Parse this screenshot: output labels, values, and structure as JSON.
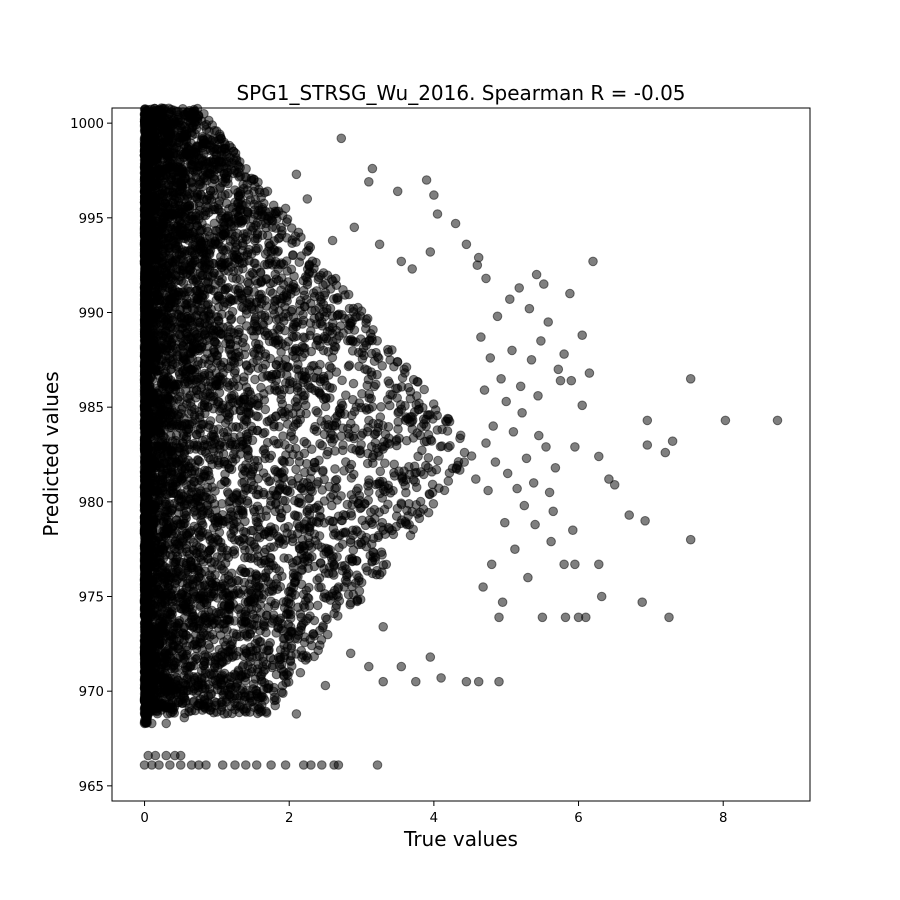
{
  "chart_data": {
    "type": "scatter",
    "title": "SPG1_STRSG_Wu_2016. Spearman R = -0.05",
    "xlabel": "True values",
    "ylabel": "Predicted values",
    "xlim": [
      -0.45,
      9.2
    ],
    "ylim": [
      964.2,
      1000.8
    ],
    "xticks": [
      0,
      2,
      4,
      6,
      8
    ],
    "yticks": [
      965,
      970,
      975,
      980,
      985,
      990,
      995,
      1000
    ],
    "grid": false,
    "legend": "none",
    "marker_color": "#000000",
    "marker_alpha": 0.5,
    "series": [
      {
        "name": "",
        "outlier_points": [
          [
            8.75,
            984.3
          ],
          [
            8.03,
            984.3
          ],
          [
            7.55,
            986.5
          ],
          [
            7.55,
            978.0
          ],
          [
            7.3,
            983.2
          ],
          [
            7.25,
            973.9
          ],
          [
            7.2,
            982.6
          ],
          [
            6.95,
            984.3
          ],
          [
            6.95,
            983.0
          ],
          [
            6.92,
            979.0
          ],
          [
            6.88,
            974.7
          ],
          [
            6.7,
            979.3
          ],
          [
            6.5,
            980.9
          ],
          [
            6.42,
            981.2
          ],
          [
            6.32,
            975.0
          ],
          [
            6.28,
            976.7
          ],
          [
            6.28,
            982.4
          ],
          [
            6.2,
            992.7
          ],
          [
            6.15,
            986.8
          ],
          [
            6.1,
            973.9
          ],
          [
            6.05,
            988.8
          ],
          [
            6.05,
            985.1
          ],
          [
            6.0,
            973.9
          ],
          [
            5.95,
            976.7
          ],
          [
            5.95,
            982.9
          ],
          [
            5.92,
            978.5
          ],
          [
            5.9,
            986.4
          ],
          [
            5.88,
            991.0
          ],
          [
            5.82,
            973.9
          ],
          [
            5.8,
            976.7
          ],
          [
            5.8,
            987.8
          ],
          [
            5.75,
            986.4
          ],
          [
            5.72,
            987.0
          ],
          [
            5.68,
            981.8
          ],
          [
            5.65,
            979.5
          ],
          [
            5.62,
            977.9
          ],
          [
            5.6,
            980.5
          ],
          [
            5.58,
            989.5
          ],
          [
            5.55,
            982.9
          ],
          [
            5.52,
            991.5
          ],
          [
            5.5,
            973.9
          ],
          [
            5.48,
            988.5
          ],
          [
            5.45,
            983.5
          ],
          [
            5.44,
            985.6
          ],
          [
            5.42,
            992.0
          ],
          [
            5.4,
            978.8
          ],
          [
            5.38,
            981.0
          ],
          [
            5.35,
            987.5
          ],
          [
            5.32,
            990.2
          ],
          [
            5.3,
            976.0
          ],
          [
            5.28,
            982.3
          ],
          [
            5.25,
            979.8
          ],
          [
            5.22,
            984.7
          ],
          [
            5.2,
            986.1
          ],
          [
            5.18,
            991.3
          ],
          [
            5.15,
            980.7
          ],
          [
            5.12,
            977.5
          ],
          [
            5.1,
            983.7
          ],
          [
            5.08,
            988.0
          ],
          [
            5.05,
            990.7
          ],
          [
            5.02,
            981.5
          ],
          [
            5.0,
            985.3
          ],
          [
            4.98,
            978.9
          ],
          [
            4.95,
            974.7
          ],
          [
            4.93,
            986.5
          ],
          [
            4.9,
            970.5
          ],
          [
            4.9,
            973.9
          ],
          [
            4.88,
            989.8
          ],
          [
            4.85,
            982.1
          ],
          [
            4.82,
            984.0
          ],
          [
            4.8,
            976.7
          ],
          [
            4.78,
            987.6
          ],
          [
            4.75,
            980.6
          ],
          [
            4.72,
            983.1
          ],
          [
            4.7,
            985.9
          ],
          [
            4.68,
            975.5
          ],
          [
            4.65,
            988.7
          ],
          [
            4.62,
            970.5
          ],
          [
            4.6,
            992.5
          ],
          [
            4.58,
            981.2
          ]
        ],
        "cluster_points": [
          [
            0.0,
            999.0
          ],
          [
            0.0,
            998.5
          ],
          [
            0.05,
            997.8
          ],
          [
            0.12,
            997.0
          ],
          [
            0.2,
            996.8
          ],
          [
            0.35,
            997.9
          ],
          [
            0.45,
            996.3
          ],
          [
            0.6,
            995.6
          ],
          [
            0.78,
            996.2
          ],
          [
            0.9,
            997.3
          ],
          [
            1.2,
            998.7
          ],
          [
            1.3,
            995.8
          ],
          [
            1.5,
            994.9
          ],
          [
            1.7,
            996.4
          ],
          [
            1.95,
            995.5
          ],
          [
            2.1,
            997.3
          ],
          [
            2.25,
            996.0
          ],
          [
            2.72,
            999.2
          ],
          [
            3.1,
            996.9
          ],
          [
            3.15,
            997.6
          ],
          [
            3.5,
            996.4
          ],
          [
            3.9,
            997.0
          ],
          [
            4.0,
            996.2
          ],
          [
            4.05,
            995.2
          ],
          [
            4.3,
            994.7
          ],
          [
            3.55,
            992.7
          ],
          [
            3.95,
            993.2
          ],
          [
            4.45,
            993.6
          ],
          [
            4.62,
            992.9
          ],
          [
            4.72,
            991.8
          ],
          [
            2.6,
            993.8
          ],
          [
            2.9,
            994.5
          ],
          [
            3.25,
            993.6
          ],
          [
            3.7,
            992.3
          ],
          [
            1.85,
            993.9
          ],
          [
            0.5,
            966.6
          ],
          [
            0.3,
            966.6
          ],
          [
            0.15,
            966.6
          ],
          [
            0.05,
            966.6
          ],
          [
            0.0,
            966.1
          ],
          [
            0.1,
            966.1
          ],
          [
            0.2,
            966.1
          ],
          [
            0.35,
            966.1
          ],
          [
            0.5,
            966.1
          ],
          [
            0.65,
            966.1
          ],
          [
            0.85,
            966.1
          ],
          [
            1.25,
            966.1
          ],
          [
            1.4,
            966.1
          ],
          [
            1.55,
            966.1
          ],
          [
            1.75,
            966.1
          ],
          [
            1.95,
            966.1
          ],
          [
            2.2,
            966.1
          ],
          [
            2.3,
            966.1
          ],
          [
            2.45,
            966.1
          ],
          [
            2.62,
            966.1
          ],
          [
            2.68,
            966.1
          ],
          [
            3.22,
            966.1
          ],
          [
            0.75,
            966.1
          ],
          [
            1.08,
            966.1
          ],
          [
            0.42,
            966.6
          ],
          [
            3.75,
            970.5
          ],
          [
            3.3,
            970.5
          ],
          [
            3.1,
            971.3
          ],
          [
            2.85,
            972.0
          ],
          [
            2.5,
            970.3
          ],
          [
            4.45,
            970.5
          ],
          [
            4.1,
            970.7
          ],
          [
            3.95,
            971.8
          ],
          [
            3.55,
            971.3
          ],
          [
            3.3,
            973.4
          ],
          [
            2.1,
            968.8
          ],
          [
            1.6,
            968.9
          ],
          [
            1.2,
            969.2
          ],
          [
            1.0,
            968.9
          ],
          [
            0.8,
            969.0
          ],
          [
            0.55,
            968.6
          ],
          [
            0.3,
            968.3
          ],
          [
            0.1,
            968.3
          ],
          [
            0.0,
            968.3
          ],
          [
            0.05,
            968.9
          ]
        ]
      }
    ]
  }
}
